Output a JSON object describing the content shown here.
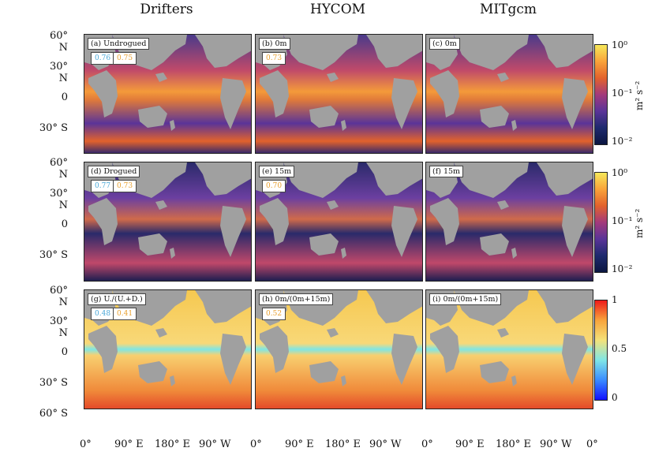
{
  "column_titles": [
    "Drifters",
    "HYCOM",
    "MITgcm"
  ],
  "panels": {
    "a": {
      "label": "(a) Undrogued",
      "stats": [
        "0.76",
        "0.75"
      ]
    },
    "b": {
      "label": "(b) 0m",
      "stats": [
        "0.73"
      ]
    },
    "c": {
      "label": "(c) 0m",
      "stats": []
    },
    "d": {
      "label": "(d) Drogued",
      "stats": [
        "0.77",
        "0.73"
      ]
    },
    "e": {
      "label": "(e) 15m",
      "stats": [
        "0.70"
      ]
    },
    "f": {
      "label": "(f) 15m",
      "stats": []
    },
    "g": {
      "label": "(g) U./(U.+D.)",
      "stats": [
        "0.48",
        "0.41"
      ]
    },
    "h": {
      "label": "(h) 0m/(0m+15m)",
      "stats": [
        "0.52"
      ]
    },
    "i": {
      "label": "(i) 0m/(0m+15m)",
      "stats": []
    }
  },
  "row1_yticks": [
    "60° N",
    "30° N",
    "0",
    "30° S"
  ],
  "row2_yticks": [
    "60° N",
    "30° N",
    "0",
    "30° S"
  ],
  "row3_yticks": [
    "60° N",
    "30° N",
    "0",
    "30° S",
    "60° S"
  ],
  "xticks": [
    "0°",
    "90° E",
    "180° E",
    "90° W",
    "0°"
  ],
  "colorbars": {
    "energy": {
      "ticks": [
        "10⁰",
        "10⁻¹",
        "10⁻²"
      ],
      "unit": "m² s⁻²"
    },
    "ratio": {
      "ticks": [
        "1",
        "0.5",
        "0"
      ]
    }
  },
  "chart_data": [
    {
      "type": "heatmap",
      "title": "Drifters",
      "panel": "(a) Undrogued",
      "stats": [
        0.76,
        0.75
      ],
      "colorscale": "log",
      "clim": [
        0.01,
        1
      ],
      "unit": "m² s⁻²"
    },
    {
      "type": "heatmap",
      "title": "HYCOM",
      "panel": "(b) 0m",
      "stats": [
        0.73
      ],
      "colorscale": "log",
      "clim": [
        0.01,
        1
      ]
    },
    {
      "type": "heatmap",
      "title": "MITgcm",
      "panel": "(c) 0m",
      "colorscale": "log",
      "clim": [
        0.01,
        1
      ]
    },
    {
      "type": "heatmap",
      "panel": "(d) Drogued",
      "stats": [
        0.77,
        0.73
      ],
      "colorscale": "log",
      "clim": [
        0.01,
        1
      ]
    },
    {
      "type": "heatmap",
      "panel": "(e) 15m",
      "stats": [
        0.7
      ],
      "colorscale": "log",
      "clim": [
        0.01,
        1
      ]
    },
    {
      "type": "heatmap",
      "panel": "(f) 15m",
      "colorscale": "log",
      "clim": [
        0.01,
        1
      ]
    },
    {
      "type": "heatmap",
      "panel": "(g) U./(U.+D.)",
      "stats": [
        0.48,
        0.41
      ],
      "clim": [
        0,
        1
      ]
    },
    {
      "type": "heatmap",
      "panel": "(h) 0m/(0m+15m)",
      "stats": [
        0.52
      ],
      "clim": [
        0,
        1
      ]
    },
    {
      "type": "heatmap",
      "panel": "(i) 0m/(0m+15m)",
      "clim": [
        0,
        1
      ]
    }
  ],
  "colors": {
    "land": "#a0a0a0",
    "energy_low": "#0b1640",
    "energy_mid": "#6b3fa0",
    "energy_high": "#f6e85a",
    "ratio_low": "#1010ff",
    "ratio_mid": "#7fe6e6",
    "ratio_high": "#ee1a1a",
    "stat_blue": "#4aa8d8",
    "stat_orange": "#e8a030"
  }
}
